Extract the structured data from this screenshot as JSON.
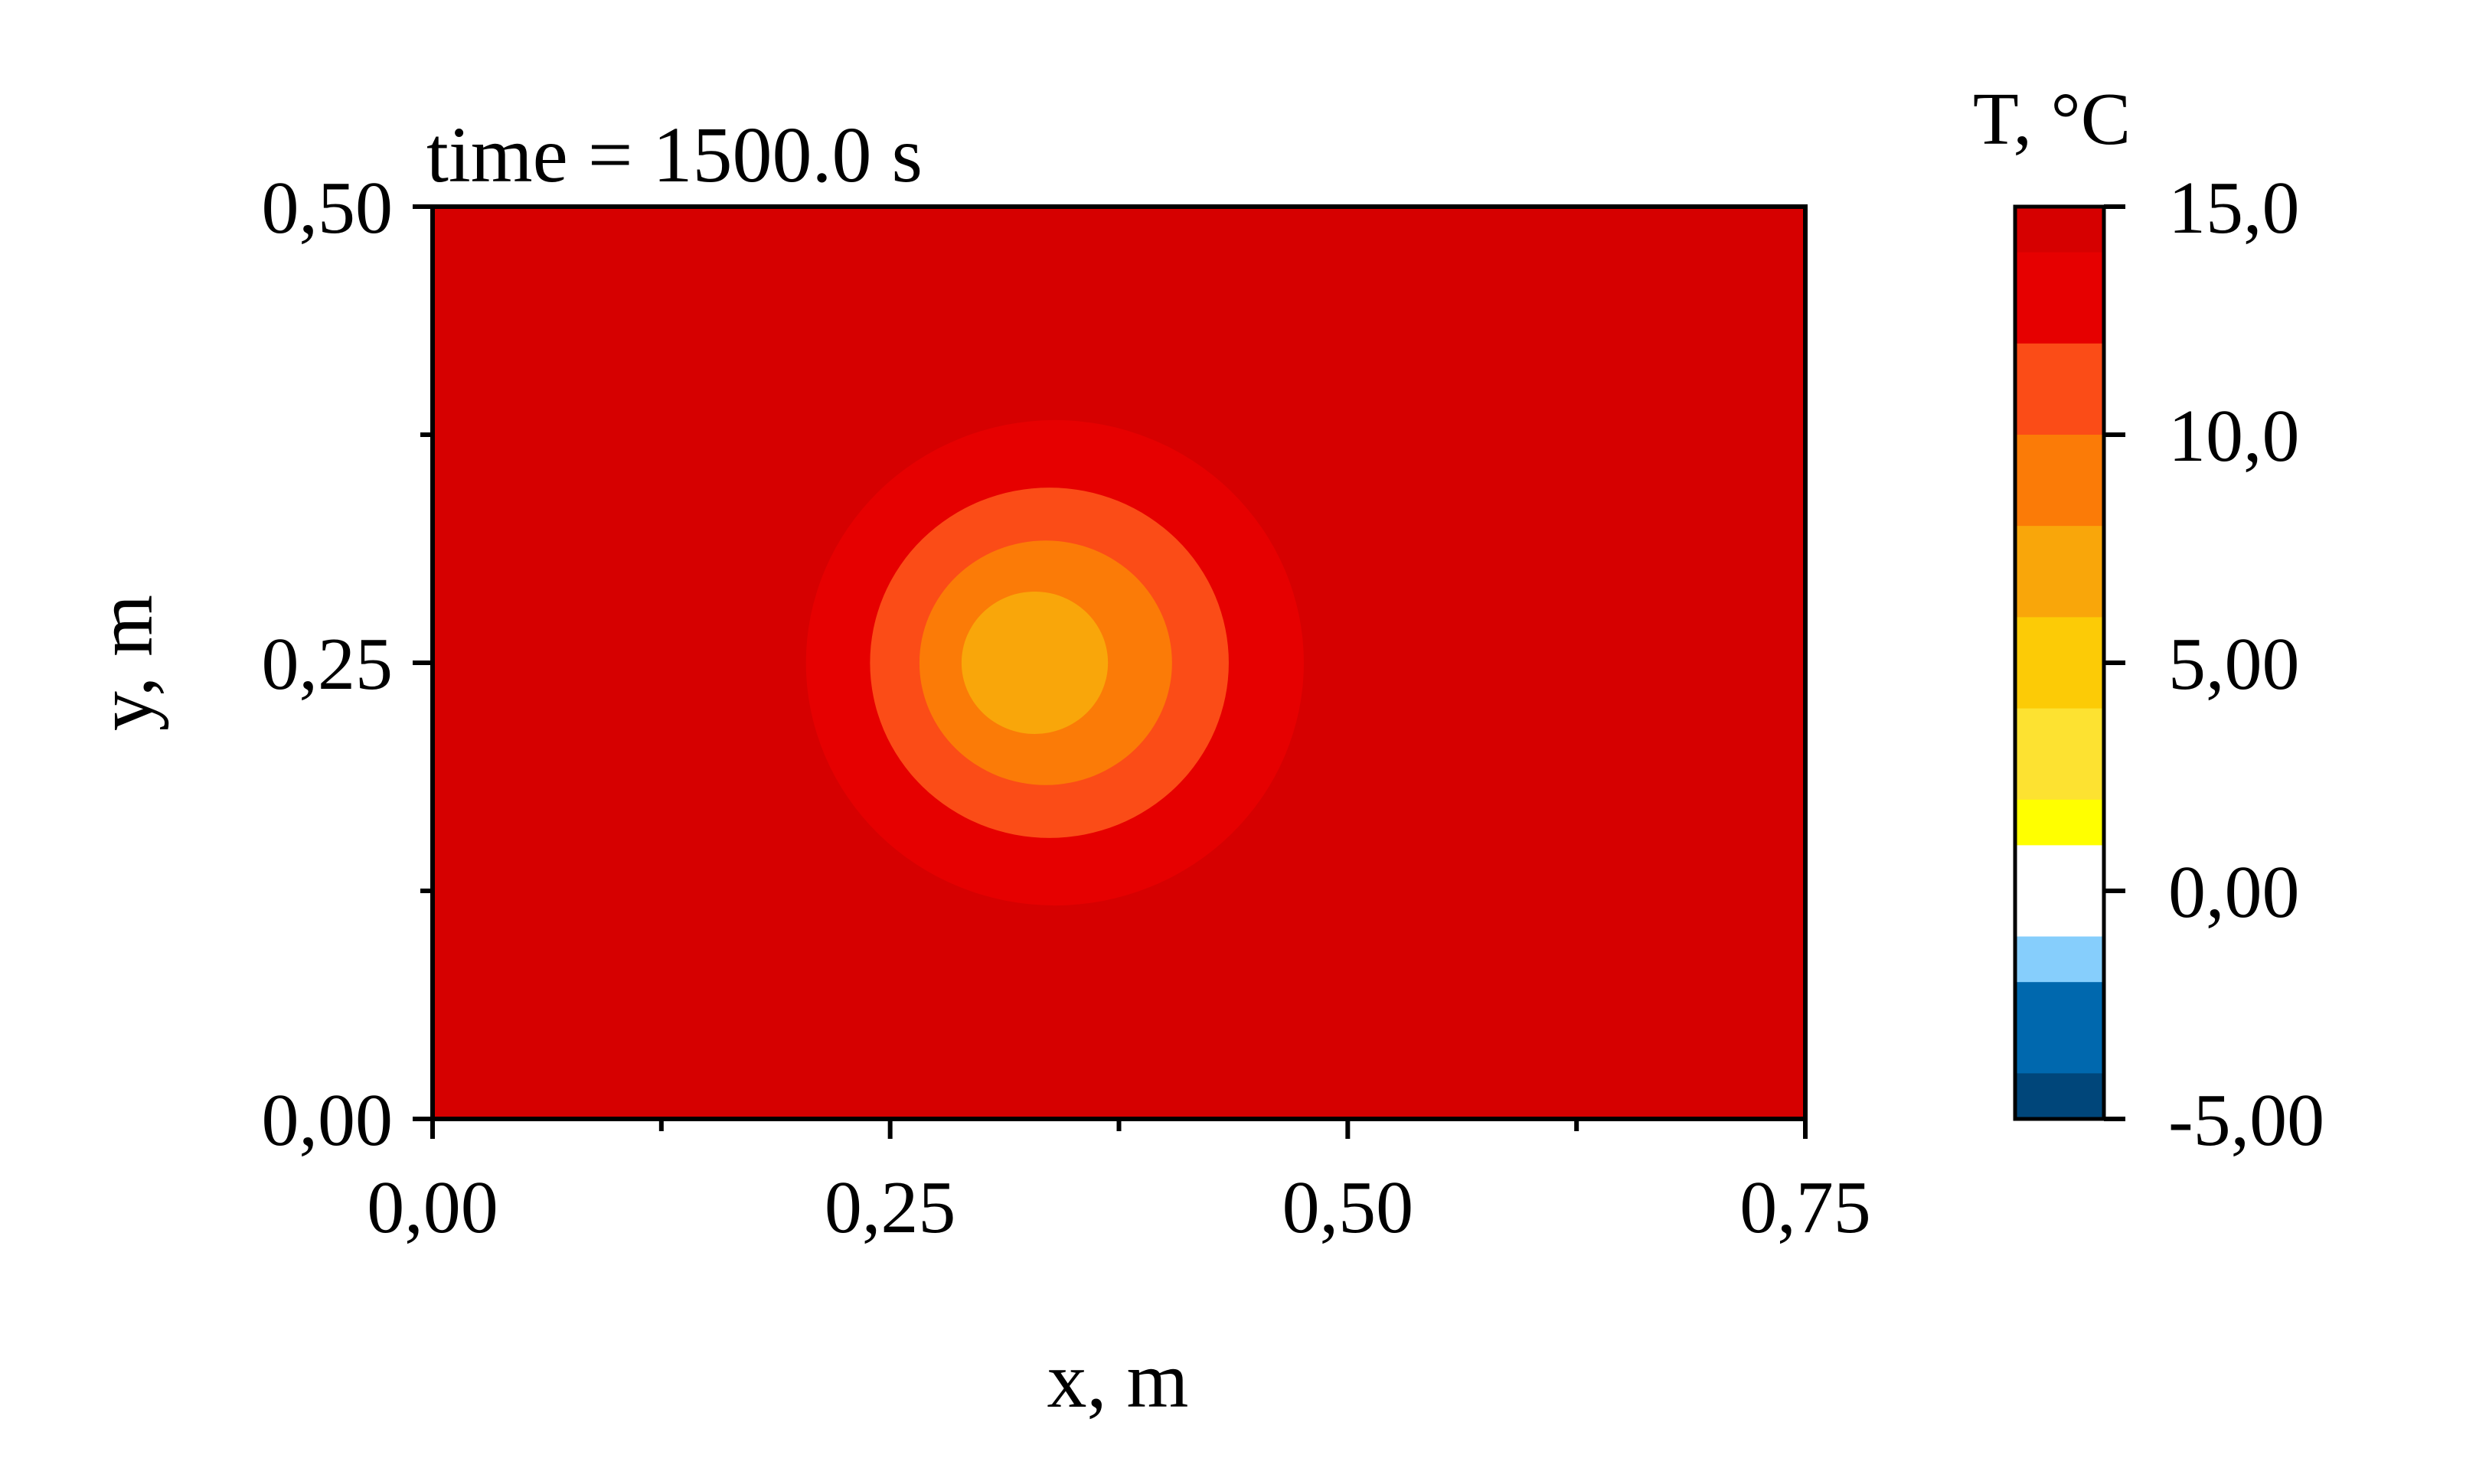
{
  "chart_data": {
    "type": "heatmap",
    "title": "time = 1500.0 s",
    "xlabel": "x, m",
    "ylabel": "y, m",
    "xlim": [
      0,
      0.75
    ],
    "ylim": [
      0,
      0.5
    ],
    "x_ticks": [
      {
        "value": 0,
        "label": "0,00"
      },
      {
        "value": 0.25,
        "label": "0,25"
      },
      {
        "value": 0.5,
        "label": "0,50"
      },
      {
        "value": 0.75,
        "label": "0,75"
      }
    ],
    "x_minor_ticks": [
      0.125,
      0.375,
      0.625
    ],
    "y_ticks": [
      {
        "value": 0,
        "label": "0,00"
      },
      {
        "value": 0.25,
        "label": "0,25"
      },
      {
        "value": 0.5,
        "label": "0,50"
      }
    ],
    "y_minor_ticks": [
      0.125,
      0.375
    ],
    "background_level": {
      "range": [
        14.0,
        15.0
      ],
      "color": "#d60000"
    },
    "contour_levels": [
      {
        "range": [
          12.0,
          14.0
        ],
        "color": "#e60000",
        "center": [
          0.34,
          0.25
        ],
        "radius_x": 0.136,
        "radius_y": 0.133
      },
      {
        "range": [
          10.0,
          12.0
        ],
        "color": "#fb4c17",
        "center": [
          0.337,
          0.25
        ],
        "radius_x": 0.098,
        "radius_y": 0.096
      },
      {
        "range": [
          8.0,
          10.0
        ],
        "color": "#fb7b07",
        "center": [
          0.335,
          0.25
        ],
        "radius_x": 0.069,
        "radius_y": 0.067
      },
      {
        "range": [
          6.0,
          8.0
        ],
        "color": "#f9a60a",
        "center": [
          0.329,
          0.25
        ],
        "radius_x": 0.04,
        "radius_y": 0.039
      }
    ],
    "colorbar": {
      "title": "T, °C",
      "min": -5.0,
      "max": 15.0,
      "ticks": [
        {
          "value": 15,
          "label": "15,0"
        },
        {
          "value": 10,
          "label": "10,0"
        },
        {
          "value": 5,
          "label": "5,00"
        },
        {
          "value": 0,
          "label": "0,00"
        },
        {
          "value": -5,
          "label": "-5,00"
        }
      ],
      "bands": [
        {
          "range": [
            14,
            15
          ],
          "color": "#d60000"
        },
        {
          "range": [
            12,
            14
          ],
          "color": "#e60000"
        },
        {
          "range": [
            10,
            12
          ],
          "color": "#fb4c17"
        },
        {
          "range": [
            8,
            10
          ],
          "color": "#fb7b07"
        },
        {
          "range": [
            6,
            8
          ],
          "color": "#f9a60a"
        },
        {
          "range": [
            4,
            6
          ],
          "color": "#fccb06"
        },
        {
          "range": [
            2,
            4
          ],
          "color": "#fde231"
        },
        {
          "range": [
            1,
            2
          ],
          "color": "#ffff00"
        },
        {
          "range": [
            -1,
            1
          ],
          "color": "#ffffff"
        },
        {
          "range": [
            -2,
            -1
          ],
          "color": "#86cefc"
        },
        {
          "range": [
            -4,
            -2
          ],
          "color": "#0068ae"
        },
        {
          "range": [
            -5,
            -4
          ],
          "color": "#00467a"
        }
      ]
    }
  }
}
